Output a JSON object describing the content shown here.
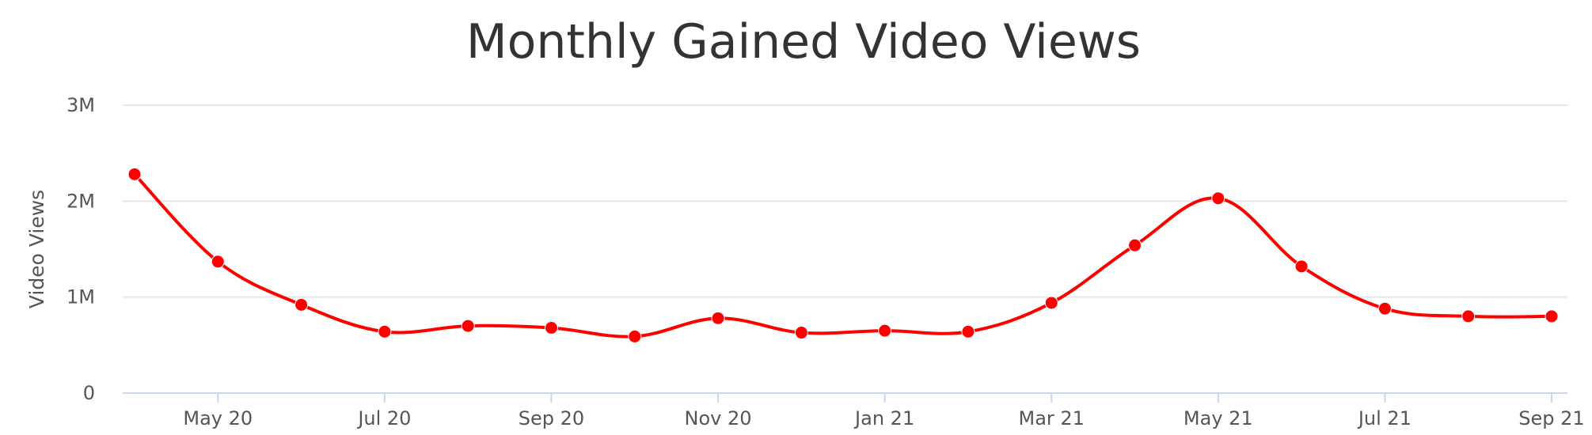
{
  "chart_data": {
    "type": "line",
    "title": "Monthly Gained Video Views",
    "ylabel": "Video Views",
    "xlabel": "",
    "ylim": [
      0,
      3000000
    ],
    "yticks": [
      {
        "value": 0,
        "label": "0"
      },
      {
        "value": 1000000,
        "label": "1M"
      },
      {
        "value": 2000000,
        "label": "2M"
      },
      {
        "value": 3000000,
        "label": "3M"
      }
    ],
    "xticks": [
      "May 20",
      "Jul 20",
      "Sep 20",
      "Nov 20",
      "Jan 21",
      "Mar 21",
      "May 21",
      "Jul 21",
      "Sep 21"
    ],
    "grid": true,
    "color": "#ff0000",
    "series": [
      {
        "x": [
          "Apr 20",
          "May 20",
          "Jun 20",
          "Jul 20",
          "Aug 20",
          "Sep 20",
          "Oct 20",
          "Nov 20",
          "Dec 20",
          "Jan 21",
          "Feb 21",
          "Mar 21",
          "Apr 21",
          "May 21",
          "Jun 21",
          "Jul 21",
          "Aug 21",
          "Sep 21"
        ],
        "values": [
          2280000,
          1370000,
          920000,
          640000,
          700000,
          680000,
          590000,
          780000,
          630000,
          650000,
          640000,
          940000,
          1540000,
          2030000,
          1320000,
          880000,
          800000,
          800000
        ]
      }
    ]
  }
}
